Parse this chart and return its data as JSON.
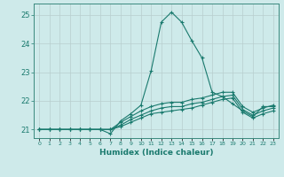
{
  "xlabel": "Humidex (Indice chaleur)",
  "x_values": [
    0,
    1,
    2,
    3,
    4,
    5,
    6,
    7,
    8,
    9,
    10,
    11,
    12,
    13,
    14,
    15,
    16,
    17,
    18,
    19,
    20,
    21,
    22,
    23
  ],
  "series": [
    [
      21.0,
      21.0,
      21.0,
      21.0,
      21.0,
      21.0,
      21.0,
      20.85,
      21.3,
      21.55,
      21.85,
      23.05,
      24.75,
      25.1,
      24.75,
      24.1,
      23.5,
      22.3,
      22.15,
      21.9,
      21.65,
      21.45,
      21.8,
      21.8
    ],
    [
      21.0,
      21.0,
      21.0,
      21.0,
      21.0,
      21.0,
      21.0,
      21.0,
      21.25,
      21.45,
      21.65,
      21.8,
      21.9,
      21.95,
      21.95,
      22.05,
      22.1,
      22.2,
      22.3,
      22.3,
      21.8,
      21.6,
      21.75,
      21.85
    ],
    [
      21.0,
      21.0,
      21.0,
      21.0,
      21.0,
      21.0,
      21.0,
      21.0,
      21.15,
      21.35,
      21.5,
      21.65,
      21.75,
      21.8,
      21.8,
      21.9,
      21.95,
      22.05,
      22.15,
      22.2,
      21.7,
      21.5,
      21.65,
      21.75
    ],
    [
      21.0,
      21.0,
      21.0,
      21.0,
      21.0,
      21.0,
      21.0,
      21.0,
      21.1,
      21.25,
      21.4,
      21.55,
      21.6,
      21.65,
      21.7,
      21.75,
      21.85,
      21.95,
      22.05,
      22.1,
      21.6,
      21.4,
      21.55,
      21.65
    ]
  ],
  "line_color": "#1a7a6e",
  "marker": "+",
  "markersize": 3.5,
  "linewidth": 0.8,
  "ylim": [
    20.7,
    25.4
  ],
  "xlim": [
    -0.5,
    23.5
  ],
  "yticks": [
    21,
    22,
    23,
    24,
    25
  ],
  "xtick_labels": [
    "0",
    "1",
    "2",
    "3",
    "4",
    "5",
    "6",
    "7",
    "8",
    "9",
    "10",
    "11",
    "12",
    "13",
    "14",
    "15",
    "16",
    "17",
    "18",
    "19",
    "20",
    "21",
    "22",
    "23"
  ],
  "bg_color": "#ceeaea",
  "grid_color": "#b8cece",
  "tick_color": "#1a7a6e",
  "label_color": "#1a7a6e",
  "axis_color": "#3a8a7e"
}
